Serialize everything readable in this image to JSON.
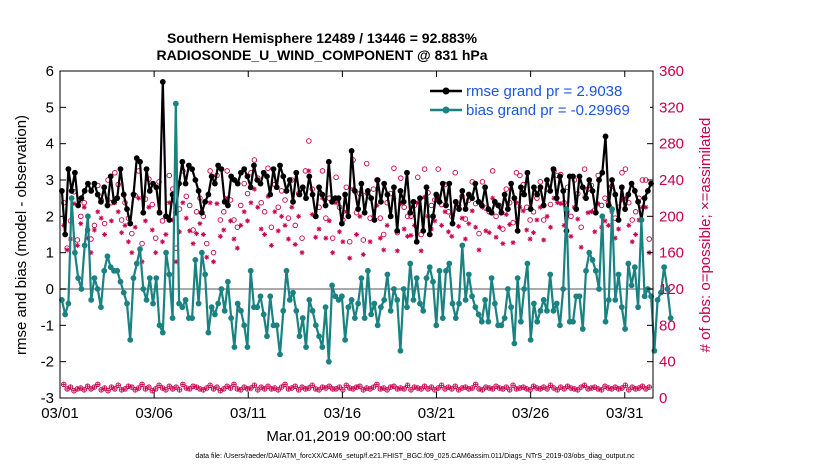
{
  "chart_data": {
    "type": "line",
    "title_line1": "Southern Hemisphere 12489 / 13446 = 92.883%",
    "title_line2": "RADIOSONDE_U_WIND_COMPONENT @ 831 hPa",
    "xlabel": "Mar.01,2019 00:00:00 start",
    "ylabel": "rmse and bias (model - observation)",
    "y2label": "# of obs: o=possible; ×=assimilated",
    "xlim": [
      0,
      31.5
    ],
    "ylim": [
      -3,
      6
    ],
    "y2lim": [
      0,
      360
    ],
    "x_ticks": [
      0,
      5,
      10,
      15,
      20,
      25,
      30
    ],
    "x_tick_labels": [
      "03/01",
      "03/06",
      "03/11",
      "03/16",
      "03/21",
      "03/26",
      "03/31"
    ],
    "y_ticks": [
      -3,
      -2,
      -1,
      0,
      1,
      2,
      3,
      4,
      5,
      6
    ],
    "y_tick_labels": [
      "-3",
      "-2",
      "-1",
      "0",
      "1",
      "2",
      "3",
      "4",
      "5",
      "6"
    ],
    "y2_ticks": [
      0,
      40,
      80,
      120,
      160,
      200,
      240,
      280,
      320,
      360
    ],
    "y2_tick_labels": [
      "0",
      "40",
      "80",
      "120",
      "160",
      "200",
      "240",
      "280",
      "320",
      "360"
    ],
    "series": [
      {
        "name": "rmse grand pr = 2.9038",
        "color": "#000000",
        "values": [
          2.7,
          1.5,
          3.3,
          2.7,
          3.2,
          2.3,
          2.5,
          2.7,
          2.9,
          2.7,
          2.9,
          2.6,
          2.4,
          2.8,
          2.3,
          3.1,
          2.4,
          2.5,
          3.3,
          2.6,
          2.2,
          1.8,
          2.6,
          3.6,
          3.5,
          2.1,
          3.3,
          2.7,
          2.9,
          2.8,
          2.1,
          5.7,
          2.0,
          1.9,
          2.6,
          2.1,
          2.9,
          3.5,
          2.9,
          3.4,
          3.3,
          3.0,
          2.7,
          2.1,
          2.4,
          2.6,
          3.1,
          2.9,
          3.4,
          3.3,
          2.4,
          2.3,
          3.1,
          3.0,
          2.9,
          3.2,
          3.3,
          3.1,
          2.8,
          3.4,
          3.0,
          2.9,
          3.2,
          3.1,
          2.6,
          3.3,
          2.8,
          3.4,
          3.1,
          2.7,
          3.0,
          2.4,
          3.2,
          2.6,
          2.8,
          2.5,
          3.1,
          2.6,
          2.0,
          2.8,
          2.6,
          2.3,
          3.5,
          2.4,
          2.5,
          2.5,
          1.8,
          2.6,
          2.0,
          3.8,
          2.7,
          2.2,
          2.9,
          2.1,
          2.7,
          2.5,
          1.9,
          3.0,
          2.4,
          2.9,
          2.6,
          2.0,
          2.8,
          1.6,
          2.7,
          2.4,
          3.2,
          2.1,
          2.4,
          1.3,
          2.5,
          1.6,
          2.8,
          1.5,
          2.0,
          2.6,
          2.4,
          2.9,
          2.3,
          2.9,
          1.8,
          2.4,
          2.2,
          2.7,
          2.2,
          2.6,
          2.5,
          2.9,
          2.4,
          2.3,
          2.8,
          2.2,
          2.1,
          2.4,
          2.3,
          2.1,
          2.6,
          2.2,
          2.9,
          2.5,
          1.6,
          2.8,
          2.6,
          3.2,
          2.2,
          2.8,
          2.6,
          2.8,
          2.3,
          3.0,
          2.7,
          3.3,
          2.5,
          3.1,
          2.7,
          1.6,
          3.1,
          3.1,
          2.2,
          3.1,
          2.8,
          2.5,
          3.0,
          2.7,
          2.1,
          3.0,
          3.2,
          4.2,
          2.3,
          3.0,
          2.6,
          1.9,
          2.8,
          2.2,
          2.6,
          2.9,
          2.7,
          2.4,
          1.9,
          2.5,
          2.7,
          2.9
        ]
      },
      {
        "name": "bias grand pr = -0.29969",
        "color": "#1b8282",
        "values": [
          -0.3,
          -0.7,
          -0.4,
          2.5,
          1.0,
          0.3,
          0.0,
          1.2,
          2.0,
          -0.3,
          0.3,
          0.0,
          -0.5,
          0.5,
          0.9,
          0.6,
          0.5,
          0.5,
          0.2,
          -0.1,
          -0.4,
          -1.4,
          0.3,
          0.7,
          1.1,
          0.0,
          -0.3,
          0.3,
          -0.4,
          0.3,
          -1.0,
          -1.2,
          1.0,
          0.4,
          -0.8,
          5.1,
          -0.4,
          -0.5,
          -0.3,
          -0.8,
          -0.8,
          0.8,
          -0.4,
          1.0,
          0.4,
          -1.2,
          -0.5,
          -0.7,
          -0.4,
          0.0,
          -0.6,
          0.2,
          -0.8,
          -1.6,
          -0.4,
          -0.6,
          -1.0,
          -1.6,
          0.5,
          -0.5,
          -0.5,
          -0.2,
          -0.7,
          -1.3,
          -0.2,
          -1.0,
          -1.0,
          -1.8,
          -0.6,
          0.5,
          -0.3,
          -0.1,
          -0.6,
          -1.3,
          -0.8,
          -1.6,
          -0.3,
          -0.6,
          -1.0,
          -1.3,
          -1.6,
          -0.5,
          -2.0,
          0.1,
          -0.2,
          -0.3,
          -0.2,
          -1.4,
          -0.5,
          -0.3,
          -0.8,
          -0.4,
          0.3,
          -0.8,
          0.5,
          -0.7,
          -0.4,
          -1.0,
          -0.5,
          -0.3,
          0.4,
          -0.6,
          0.0,
          -0.3,
          -1.7,
          0.0,
          -0.5,
          0.7,
          -0.3,
          0.3,
          -0.4,
          -0.6,
          0.3,
          0.6,
          0.2,
          -1.0,
          0.5,
          -0.8,
          0.5,
          0.7,
          -0.4,
          -0.8,
          -0.4,
          1.2,
          -0.3,
          0.4,
          -0.2,
          -0.5,
          -0.7,
          -0.9,
          -0.3,
          -0.9,
          0.3,
          -0.4,
          -1.0,
          -1.0,
          -0.8,
          0.0,
          -0.5,
          -1.5,
          0.3,
          -0.9,
          0.0,
          0.7,
          -1.4,
          -0.4,
          -0.9,
          -0.6,
          -0.3,
          -0.6,
          0.4,
          -0.6,
          -0.4,
          -1.0,
          0.0,
          2.2,
          -0.9,
          -0.9,
          -0.2,
          -0.2,
          -1.1,
          0.5,
          1.0,
          0.8,
          0.5,
          0.0,
          2.0,
          -0.9,
          -0.3,
          2.2,
          -0.3,
          0.4,
          -0.5,
          -1.1,
          0.7,
          0.1,
          0.6,
          -0.5,
          1.9,
          -0.2,
          0.0,
          -0.2,
          -1.7,
          -0.3,
          -0.1,
          0.6,
          0.0,
          -0.8
        ]
      }
    ],
    "obs_possible": [
      215,
      165,
      195,
      227,
      174,
      200,
      215,
      185,
      175,
      190,
      234,
      218,
      192,
      240,
      215,
      248,
      235,
      196,
      215,
      198,
      181,
      223,
      250,
      170,
      219,
      241,
      213,
      176,
      238,
      195,
      200,
      245,
      230,
      165,
      208,
      250,
      222,
      212,
      185,
      205,
      220,
      200,
      170,
      250,
      160,
      245,
      196,
      205,
      250,
      218,
      196,
      188,
      212,
      236,
      225,
      248,
      262,
      242,
      215,
      205,
      253,
      188,
      235,
      210,
      228,
      218,
      198,
      240,
      190,
      225,
      176,
      250,
      283,
      230,
      200,
      210,
      250,
      198,
      220,
      176,
      243,
      210,
      196,
      232,
      172,
      262,
      204,
      225,
      174,
      258,
      198,
      230,
      240,
      198,
      180,
      215,
      225,
      253,
      182,
      242,
      210,
      200,
      200,
      212,
      243,
      180,
      252,
      226,
      212,
      218,
      252,
      213,
      235,
      205,
      200,
      248,
      212,
      222,
      197,
      218,
      238,
      214,
      181,
      238,
      209,
      205,
      250,
      200,
      212,
      186,
      230,
      215,
      193,
      248,
      245,
      235,
      210,
      196,
      205,
      220,
      238,
      196,
      230,
      213,
      250,
      245,
      246,
      215,
      232,
      200,
      240,
      225,
      188,
      252,
      230,
      234,
      207,
      245,
      212,
      220,
      215,
      233,
      198,
      210,
      248,
      252,
      215,
      196,
      205,
      220,
      240,
      240,
      175
    ],
    "obs_assimilated": [
      190,
      163,
      175,
      214,
      168,
      192,
      210,
      176,
      160,
      185,
      205,
      198,
      180,
      218,
      195,
      215,
      205,
      182,
      190,
      172,
      160,
      188,
      220,
      150,
      195,
      210,
      185,
      160,
      205,
      172,
      180,
      215,
      196,
      150,
      183,
      215,
      198,
      184,
      170,
      181,
      192,
      180,
      155,
      215,
      150,
      214,
      178,
      185,
      220,
      195,
      175,
      165,
      190,
      205,
      195,
      215,
      230,
      210,
      186,
      180,
      222,
      168,
      205,
      184,
      200,
      190,
      175,
      210,
      169,
      200,
      160,
      220,
      250,
      202,
      177,
      186,
      220,
      176,
      195,
      160,
      215,
      183,
      172,
      205,
      154,
      230,
      180,
      200,
      158,
      225,
      172,
      200,
      212,
      176,
      163,
      190,
      200,
      220,
      162,
      214,
      186,
      178,
      179,
      190,
      215,
      162,
      221,
      200,
      186,
      195,
      222,
      190,
      205,
      183,
      178,
      216,
      189,
      198,
      175,
      192,
      206,
      188,
      163,
      210,
      184,
      182,
      220,
      177,
      188,
      170,
      202,
      191,
      171,
      215,
      210,
      206,
      185,
      175,
      182,
      196,
      210,
      174,
      200,
      188,
      220,
      215,
      214,
      190,
      205,
      178,
      210,
      197,
      166,
      221,
      204,
      205,
      183,
      214,
      188,
      195,
      190,
      205,
      176,
      186,
      218,
      220,
      190,
      172,
      180,
      196,
      210,
      210,
      160
    ],
    "obs_bottom_possible": [
      15,
      10,
      12,
      8,
      10,
      11,
      9,
      13,
      10,
      12,
      15,
      9,
      11,
      8,
      12,
      10,
      14,
      9,
      10,
      13,
      12,
      9,
      11,
      15,
      10,
      12,
      8,
      10,
      14,
      11,
      9,
      13,
      10,
      12,
      9,
      15,
      11,
      10,
      13,
      12,
      10,
      9,
      11,
      14,
      10,
      12,
      8,
      10,
      13,
      11,
      15,
      10,
      9,
      12,
      10,
      11,
      14,
      9,
      12,
      10,
      13,
      10,
      11,
      9,
      12,
      15,
      10,
      11,
      13,
      9,
      12,
      10,
      11,
      14,
      10,
      9,
      12,
      11,
      13,
      10,
      10,
      12,
      9,
      14,
      11,
      10,
      12,
      13,
      9,
      11,
      10,
      12,
      15,
      10,
      11,
      9,
      12,
      13,
      10,
      11,
      10,
      14,
      9,
      12,
      11,
      10,
      13,
      10,
      12,
      9,
      11,
      14,
      10,
      12,
      10,
      13,
      9,
      11,
      12,
      10,
      11,
      15,
      10,
      9,
      12,
      11,
      10,
      13,
      11,
      10,
      12,
      9,
      14,
      10,
      11,
      12,
      10,
      9,
      13,
      11,
      10,
      12,
      10,
      14,
      11,
      9,
      12,
      10,
      13,
      11,
      10,
      9,
      12,
      14,
      10,
      11,
      12,
      10,
      9,
      13,
      11,
      10,
      12,
      10,
      11,
      14,
      9,
      12,
      10,
      11,
      13,
      10,
      12
    ],
    "reference_line": 0,
    "footnote": "data file: /Users/raeder/DAI/ATM_forcXX/CAM6_setup/f.e21.FHIST_BGC.f09_025.CAM6assim.011/Diags_NTrS_2019-03/obs_diag_output.nc",
    "colors": {
      "rmse": "#000000",
      "bias": "#1b8282",
      "obs": "#c8004e",
      "legend_text": "#1c55e0",
      "zero_line": "#aaaaaa"
    }
  }
}
